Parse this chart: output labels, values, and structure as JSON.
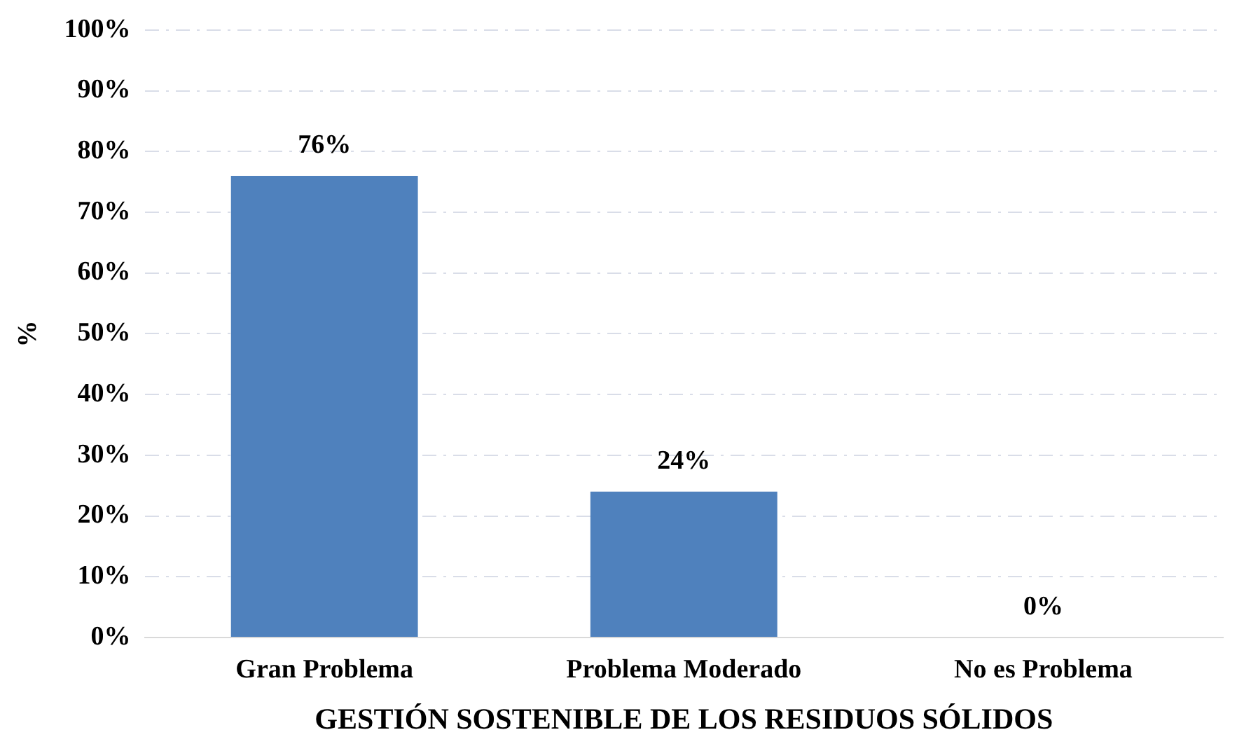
{
  "chart_data": {
    "type": "bar",
    "xlabel": "GESTIÓN SOSTENIBLE DE LOS RESIDUOS SÓLIDOS",
    "ylabel": "%",
    "categories": [
      "Gran Problema",
      "Problema Moderado",
      "No es Problema"
    ],
    "values": [
      76,
      24,
      0
    ],
    "color": "#4f81bd",
    "value_labels": [
      "76%",
      "24%",
      "0%"
    ],
    "ylim": [
      0,
      100
    ],
    "yticks": [
      {
        "value": 0,
        "label": "0%"
      },
      {
        "value": 10,
        "label": "10%"
      },
      {
        "value": 20,
        "label": "20%"
      },
      {
        "value": 30,
        "label": "30%"
      },
      {
        "value": 40,
        "label": "40%"
      },
      {
        "value": 50,
        "label": "50%"
      },
      {
        "value": 60,
        "label": "60%"
      },
      {
        "value": 70,
        "label": "70%"
      },
      {
        "value": 80,
        "label": "80%"
      },
      {
        "value": 90,
        "label": "90%"
      },
      {
        "value": 100,
        "label": "100%"
      }
    ],
    "grid": "y"
  }
}
